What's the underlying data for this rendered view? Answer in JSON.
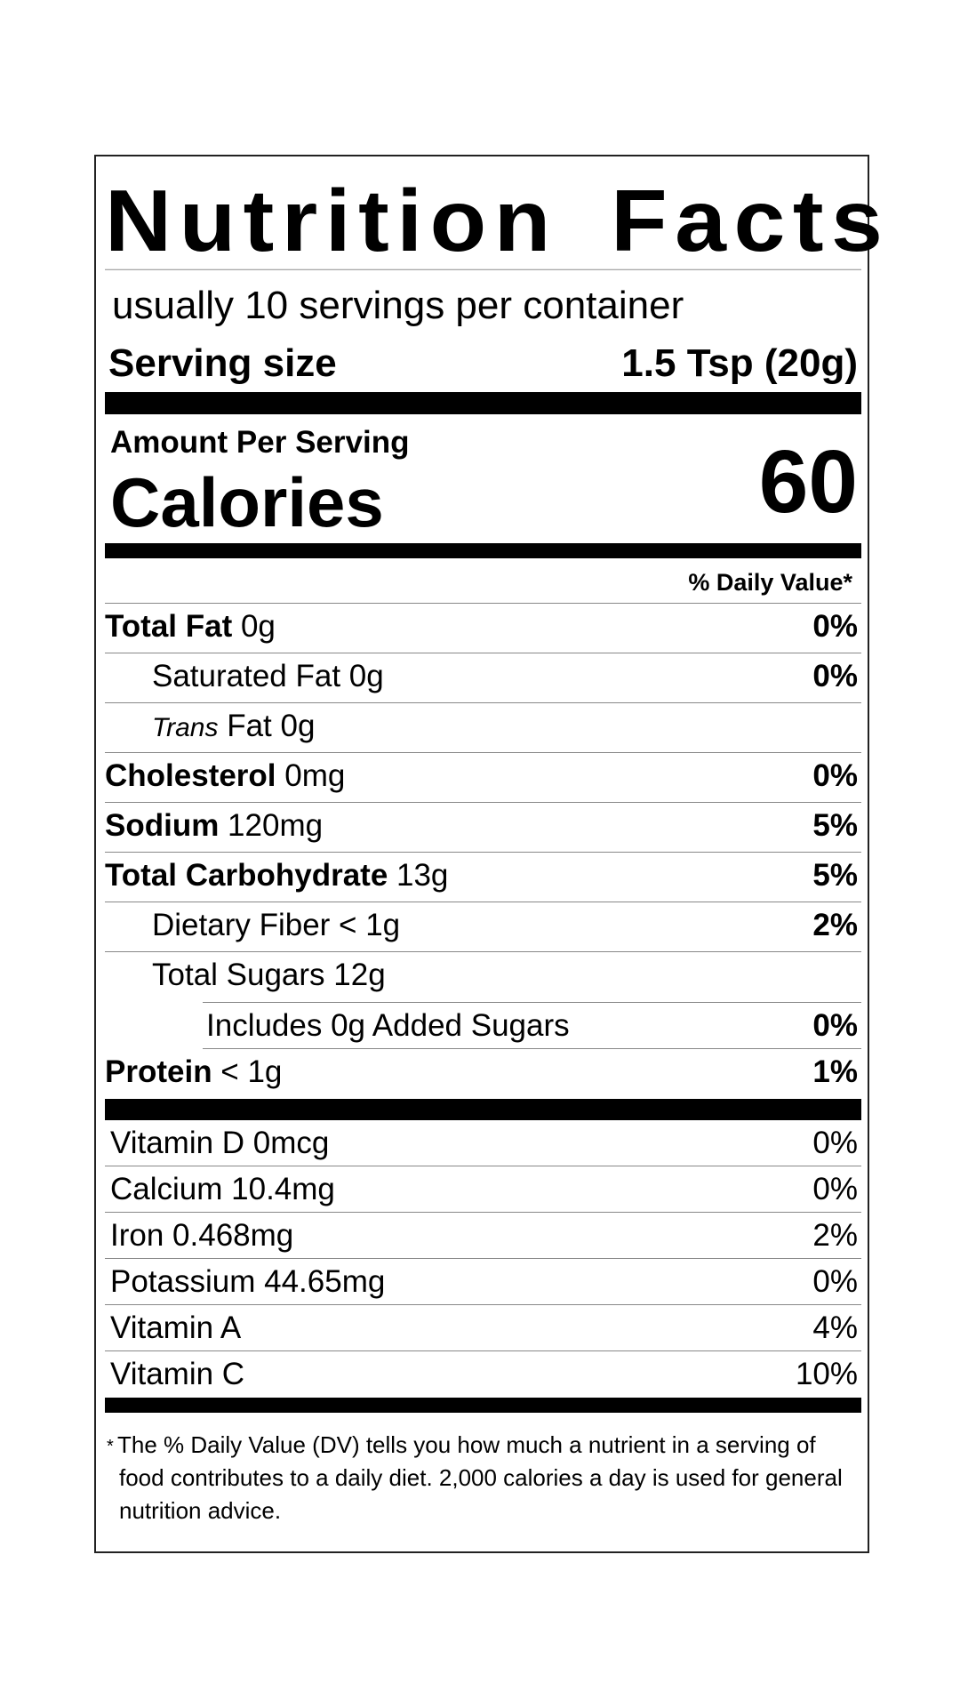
{
  "label": {
    "title": "Nutrition Facts",
    "servings_per_container": "usually 10 servings per container",
    "serving_size_label": "Serving size",
    "serving_size_value": "1.5 Tsp (20g)",
    "amount_per_serving": "Amount Per Serving",
    "calories_label": "Calories",
    "calories_value": "60",
    "daily_value_header": "% Daily Value*",
    "nutrients": [
      {
        "name": "Total Fat",
        "amount": " 0g",
        "dv": "0%"
      },
      {
        "name": "Saturated Fat 0g",
        "amount": "",
        "dv": "0%"
      },
      {
        "name": "Trans",
        "amount": " Fat 0g",
        "dv": ""
      },
      {
        "name": "Cholesterol",
        "amount": " 0mg",
        "dv": "0%"
      },
      {
        "name": "Sodium",
        "amount": " 120mg",
        "dv": "5%"
      },
      {
        "name": "Total Carbohydrate",
        "amount": " 13g",
        "dv": "5%"
      },
      {
        "name": "Dietary Fiber < 1g",
        "amount": "",
        "dv": "2%"
      },
      {
        "name": "Total Sugars 12g",
        "amount": "",
        "dv": ""
      },
      {
        "name": "Includes 0g Added Sugars",
        "amount": "",
        "dv": "0%"
      },
      {
        "name": "Protein",
        "amount": " < 1g",
        "dv": "1%"
      }
    ],
    "vitamins": [
      {
        "name": "Vitamin D 0mcg",
        "dv": "0%"
      },
      {
        "name": "Calcium 10.4mg",
        "dv": "0%"
      },
      {
        "name": "Iron 0.468mg",
        "dv": "2%"
      },
      {
        "name": "Potassium 44.65mg",
        "dv": "0%"
      },
      {
        "name": "Vitamin A",
        "dv": "4%"
      },
      {
        "name": "Vitamin C",
        "dv": "10%"
      }
    ],
    "footnote_star": "*",
    "footnote": "The % Daily Value (DV) tells you how much a nutrient in a serving of food contributes to a daily diet. 2,000 calories a day is used for general nutrition advice."
  }
}
